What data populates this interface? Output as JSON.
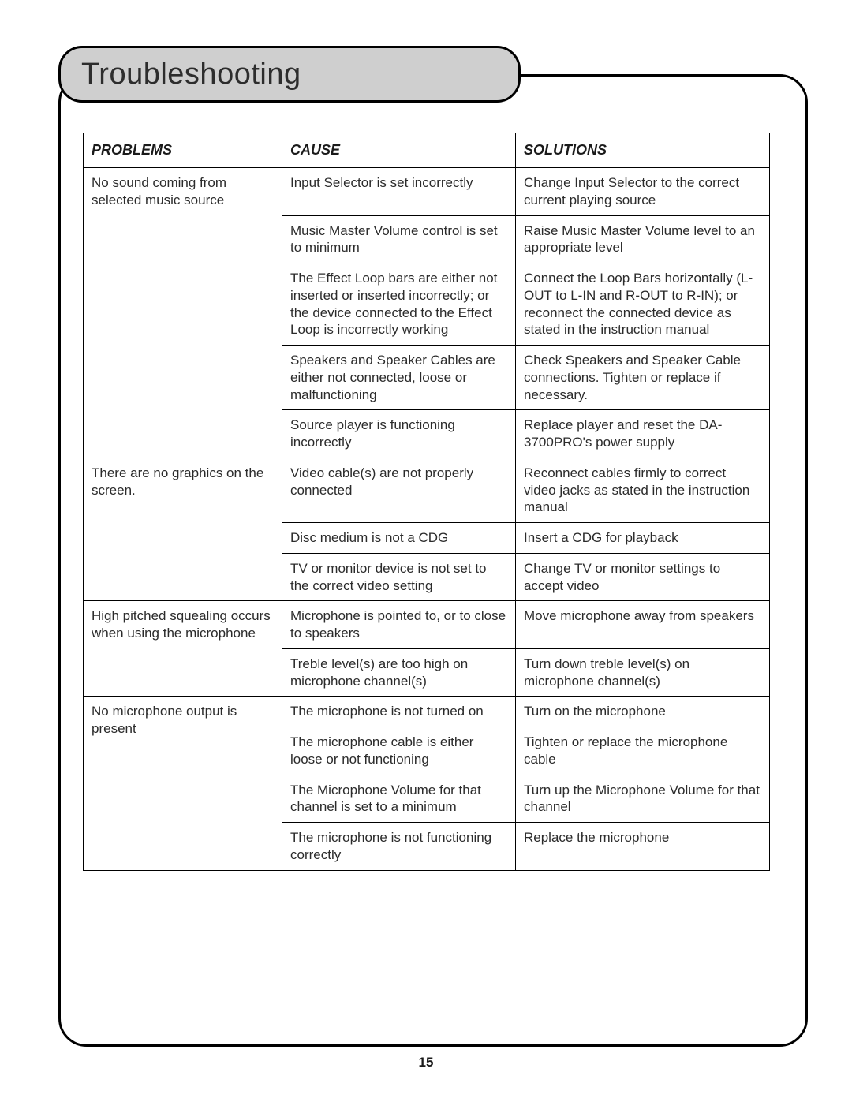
{
  "title": "Troubleshooting",
  "page_number": "15",
  "table": {
    "headers": [
      "PROBLEMS",
      "CAUSE",
      "SOLUTIONS"
    ],
    "groups": [
      {
        "problem": "No sound coming from selected music source",
        "rows": [
          {
            "cause": "Input Selector is set incorrectly",
            "solution": "Change Input Selector to the correct current playing source"
          },
          {
            "cause": "Music Master Volume control is set to minimum",
            "solution": "Raise Music Master Volume level to an appropriate level"
          },
          {
            "cause": "The Effect Loop bars are either not inserted or inserted incorrectly; or the device connected to the Effect Loop is incorrectly working",
            "solution": "Connect the Loop Bars horizontally (L-OUT to L-IN and R-OUT to R-IN); or reconnect the connected device as stated in the instruction manual"
          },
          {
            "cause": "Speakers and Speaker Cables are either not connected, loose or malfunctioning",
            "solution": "Check Speakers and Speaker Cable connections. Tighten or replace if necessary."
          },
          {
            "cause": "Source player is functioning incorrectly",
            "solution": "Replace player and reset the DA-3700PRO's power supply"
          }
        ]
      },
      {
        "problem": "There are no graphics on the screen.",
        "rows": [
          {
            "cause": "Video cable(s) are not properly connected",
            "solution": "Reconnect cables firmly to correct video jacks as stated in the instruction manual"
          },
          {
            "cause": "Disc medium is not a CDG",
            "solution": "Insert a CDG for playback"
          },
          {
            "cause": "TV or monitor device is not set to the correct video setting",
            "solution": "Change TV or monitor settings to accept video"
          }
        ]
      },
      {
        "problem": "High pitched squealing occurs when using the microphone",
        "rows": [
          {
            "cause": "Microphone is pointed to, or to close to speakers",
            "solution": "Move microphone away from speakers"
          },
          {
            "cause": "Treble level(s) are too high on microphone channel(s)",
            "solution": "Turn down treble level(s) on microphone channel(s)"
          }
        ]
      },
      {
        "problem": "No microphone output is present",
        "rows": [
          {
            "cause": "The microphone is not turned on",
            "solution": "Turn on the microphone"
          },
          {
            "cause": "The microphone cable is either loose or not functioning",
            "solution": "Tighten or replace the microphone cable"
          },
          {
            "cause": "The Microphone Volume for that channel is set to a minimum",
            "solution": "Turn up the Microphone Volume for that channel"
          },
          {
            "cause": "The microphone is not functioning correctly",
            "solution": "Replace the microphone"
          }
        ]
      }
    ]
  }
}
